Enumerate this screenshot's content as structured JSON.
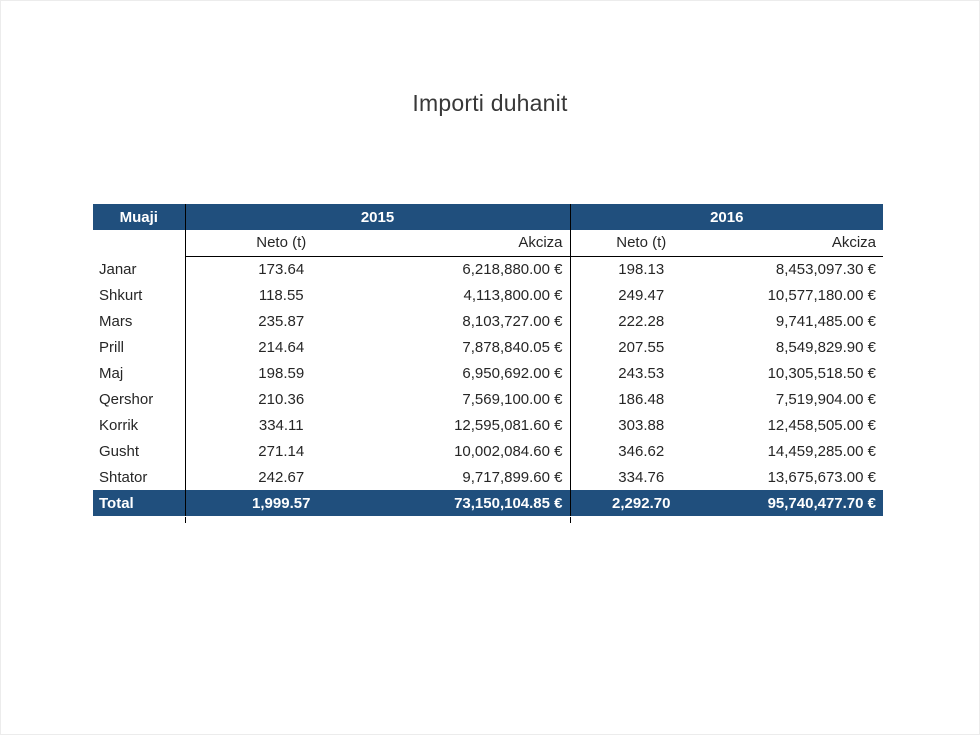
{
  "page": {
    "title": "Importi duhanit"
  },
  "colors": {
    "header_blue": "#204F7D",
    "text": "#262626",
    "border": "#000000",
    "background": "#FFFFFF"
  },
  "table": {
    "month_header": "Muaji",
    "years": [
      "2015",
      "2016"
    ],
    "subheaders": {
      "neto": "Neto (t)",
      "akciza": "Akciza"
    },
    "rows": [
      {
        "month": "Janar",
        "neto_2015": "173.64",
        "akciza_2015": "6,218,880.00 €",
        "neto_2016": "198.13",
        "akciza_2016": "8,453,097.30 €"
      },
      {
        "month": "Shkurt",
        "neto_2015": "118.55",
        "akciza_2015": "4,113,800.00 €",
        "neto_2016": "249.47",
        "akciza_2016": "10,577,180.00 €"
      },
      {
        "month": "Mars",
        "neto_2015": "235.87",
        "akciza_2015": "8,103,727.00 €",
        "neto_2016": "222.28",
        "akciza_2016": "9,741,485.00 €"
      },
      {
        "month": "Prill",
        "neto_2015": "214.64",
        "akciza_2015": "7,878,840.05 €",
        "neto_2016": "207.55",
        "akciza_2016": "8,549,829.90 €"
      },
      {
        "month": "Maj",
        "neto_2015": "198.59",
        "akciza_2015": "6,950,692.00 €",
        "neto_2016": "243.53",
        "akciza_2016": "10,305,518.50 €"
      },
      {
        "month": "Qershor",
        "neto_2015": "210.36",
        "akciza_2015": "7,569,100.00 €",
        "neto_2016": "186.48",
        "akciza_2016": "7,519,904.00 €"
      },
      {
        "month": "Korrik",
        "neto_2015": "334.11",
        "akciza_2015": "12,595,081.60 €",
        "neto_2016": "303.88",
        "akciza_2016": "12,458,505.00 €"
      },
      {
        "month": "Gusht",
        "neto_2015": "271.14",
        "akciza_2015": "10,002,084.60 €",
        "neto_2016": "346.62",
        "akciza_2016": "14,459,285.00 €"
      },
      {
        "month": "Shtator",
        "neto_2015": "242.67",
        "akciza_2015": "9,717,899.60 €",
        "neto_2016": "334.76",
        "akciza_2016": "13,675,673.00 €"
      }
    ],
    "total_label": "Total",
    "total": {
      "neto_2015": "1,999.57",
      "akciza_2015": "73,150,104.85 €",
      "neto_2016": "2,292.70",
      "akciza_2016": "95,740,477.70 €"
    }
  }
}
